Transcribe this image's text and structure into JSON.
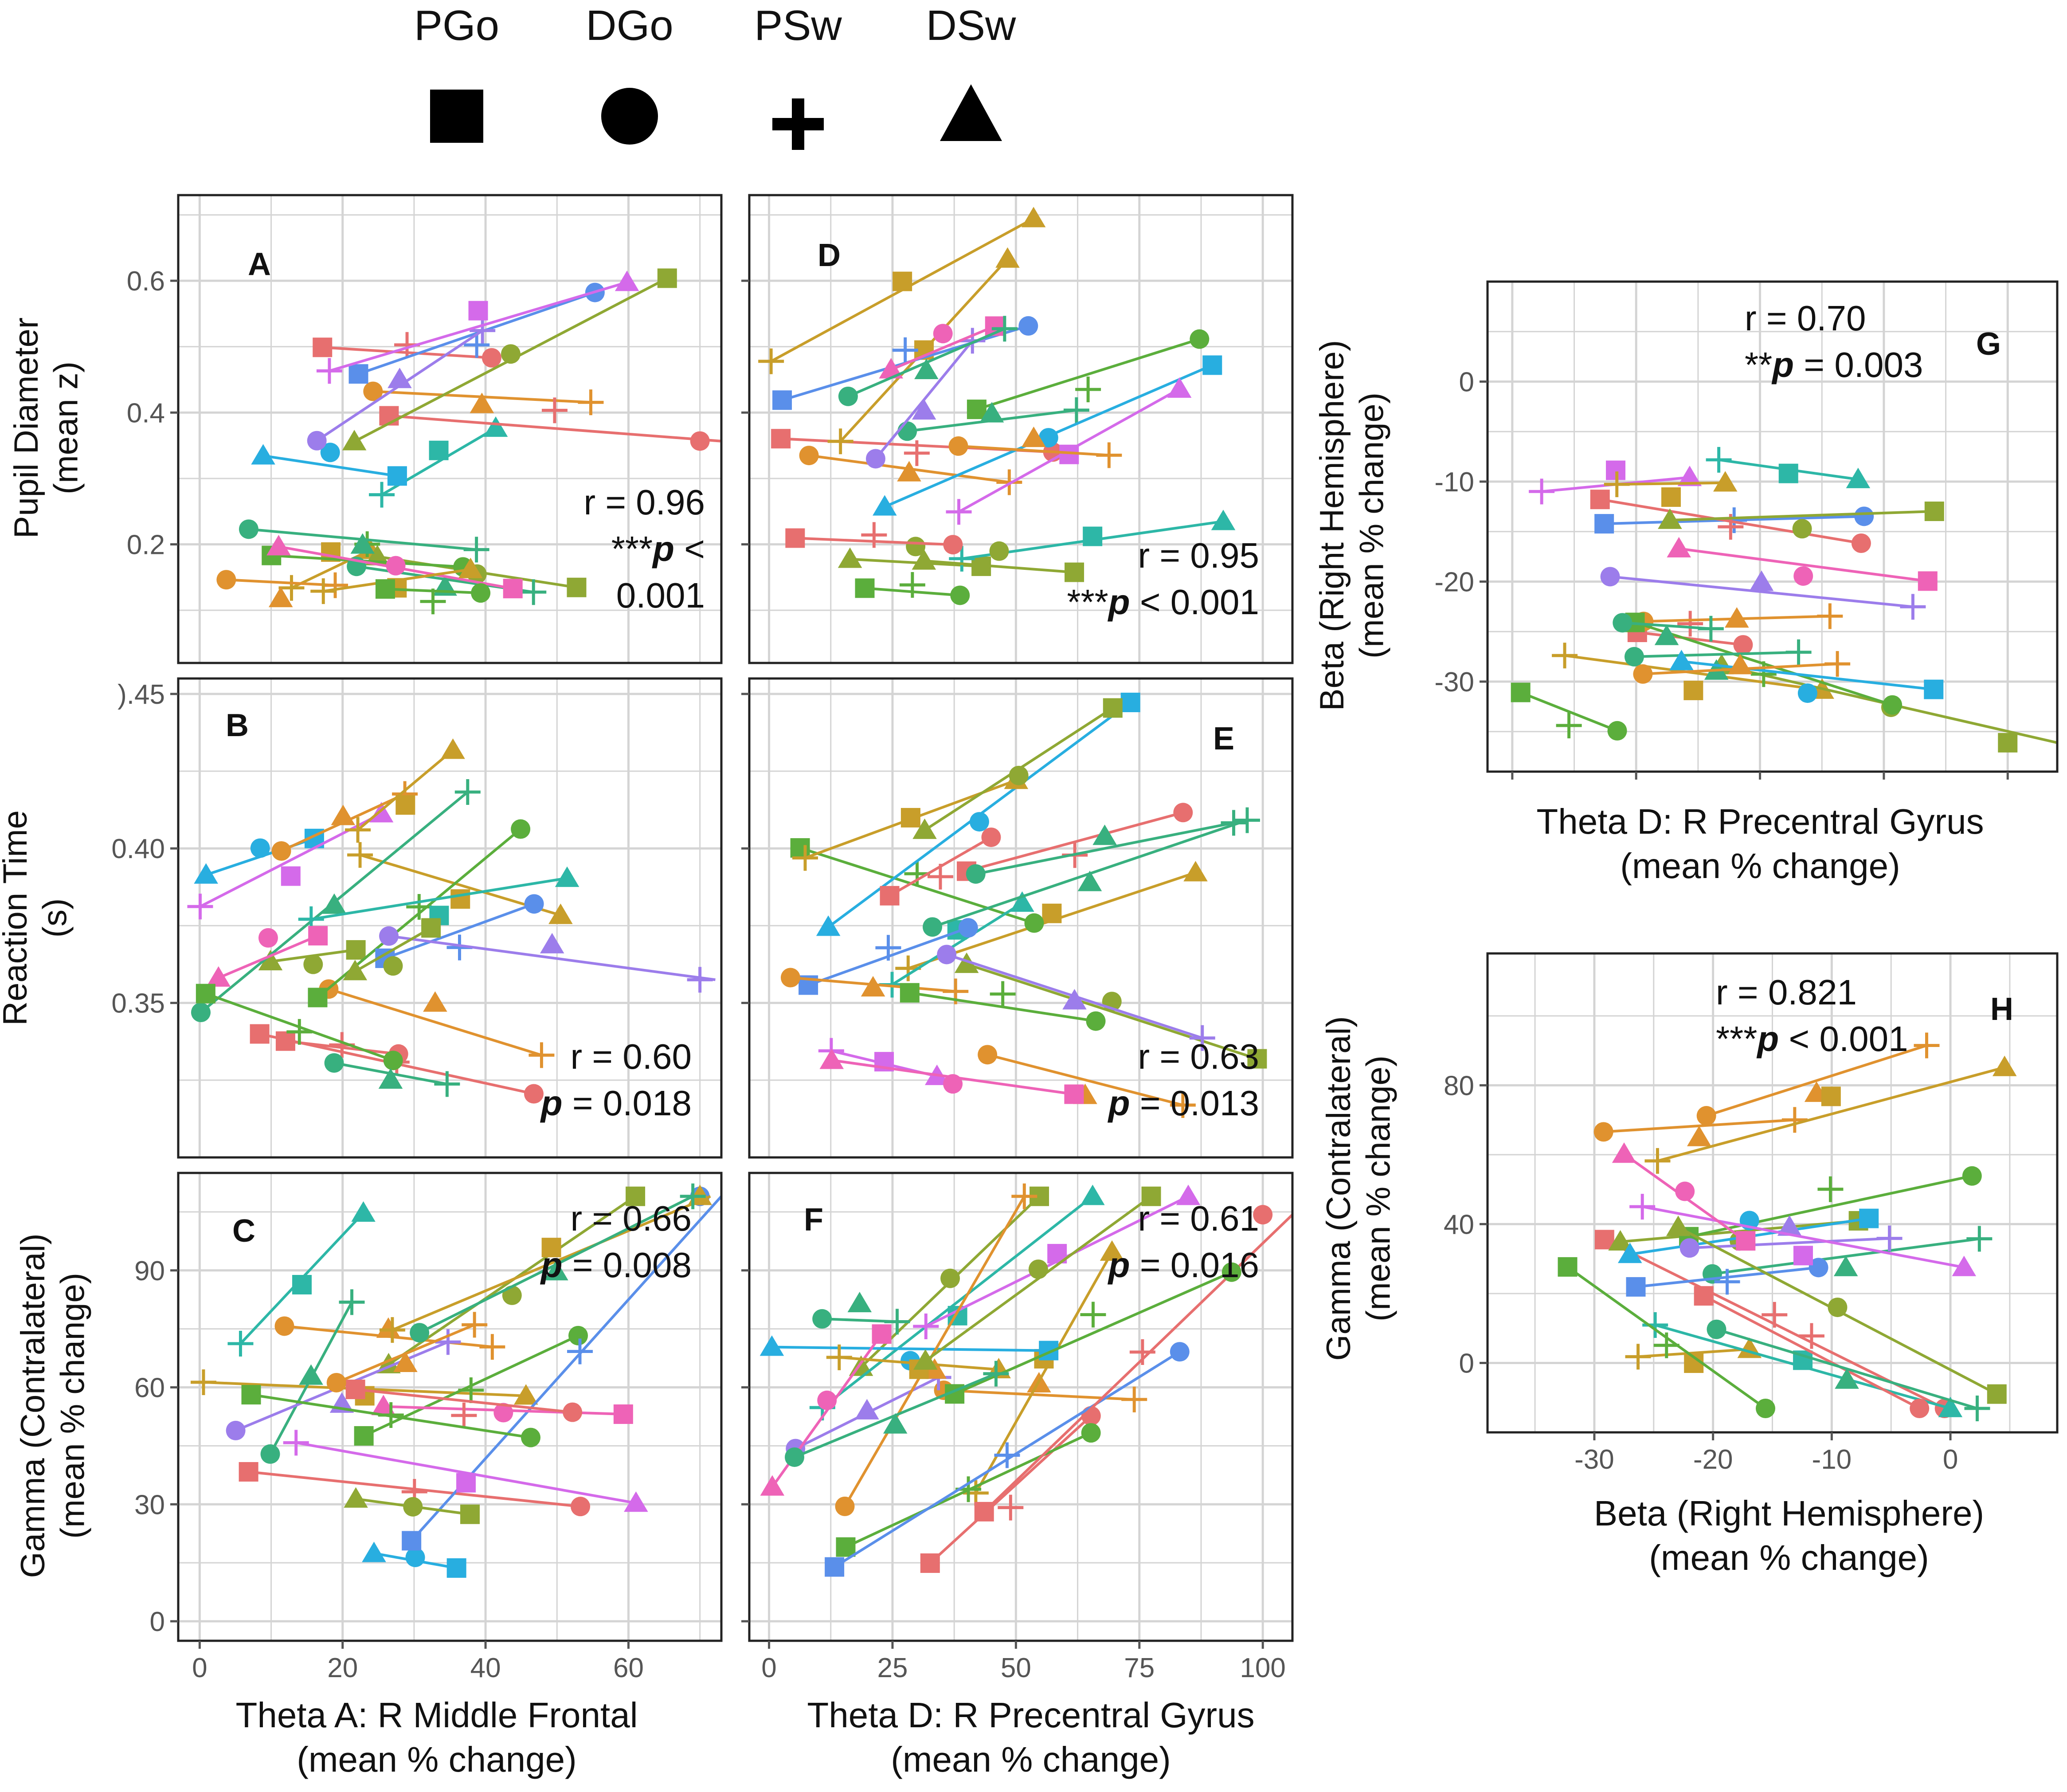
{
  "legend": {
    "items": [
      {
        "label": "PGo",
        "shape": "square"
      },
      {
        "label": "DGo",
        "shape": "circle"
      },
      {
        "label": "PSw",
        "shape": "plus"
      },
      {
        "label": "DSw",
        "shape": "triangle"
      }
    ]
  },
  "colors": {
    "frame": "#222222",
    "grid": "#d4d4d4",
    "tick": "#555555",
    "palette": [
      "#E76F6F",
      "#E0922F",
      "#C89E2A",
      "#8FA834",
      "#5BAE3C",
      "#38B07F",
      "#2DB7A7",
      "#28AEE0",
      "#5A8FEA",
      "#9C7DEB",
      "#D46AEA",
      "#EE63B7"
    ]
  },
  "xlabels": {
    "theta_a": [
      "Theta A: R Middle Frontal",
      "(mean % change)"
    ],
    "theta_d": [
      "Theta D: R Precentral Gyrus",
      "(mean % change)"
    ],
    "theta_d_g": [
      "Theta D: R Precentral Gyrus",
      "(mean % change)"
    ],
    "beta_h": [
      "Beta (Right Hemisphere)",
      "(mean % change)"
    ]
  },
  "ylabels": {
    "pupil": [
      "Pupil Diameter",
      "(mean z)"
    ],
    "rt": [
      "Reaction Time",
      "(s)"
    ],
    "gamma": [
      "Gamma (Contralateral)",
      "(mean % change)"
    ],
    "beta_g": [
      "Beta (Right Hemisphere)",
      "(mean % change)"
    ],
    "gamma_h": [
      "Gamma (Contralateral)",
      "(mean % change)"
    ]
  },
  "chart_data": [
    {
      "panel": "A",
      "type": "scatter",
      "xlabel": "Theta A: R Middle Frontal (mean % change)",
      "ylabel": "Pupil Diameter (mean z)",
      "xlim": [
        -3,
        73
      ],
      "ylim": [
        0.02,
        0.73
      ],
      "xticks": [
        0,
        20,
        40,
        60
      ],
      "yticks": [
        0.2,
        0.4,
        0.6
      ],
      "ytick_labels": [
        "0.2",
        "0.4",
        "0.6"
      ],
      "stats": [
        "r = 0.96",
        "***p <",
        "0.001"
      ],
      "seed": 1,
      "slopes": [
        0.004,
        -0.001
      ],
      "xmin": 0,
      "xmax": 70
    },
    {
      "panel": "B",
      "type": "scatter",
      "xlabel": "Theta A: R Middle Frontal (mean % change)",
      "ylabel": "Reaction Time (s)",
      "xlim": [
        -3,
        73
      ],
      "ylim": [
        0.3,
        0.455
      ],
      "xticks": [
        0,
        20,
        40,
        60
      ],
      "yticks": [
        0.35,
        0.4,
        0.45
      ],
      "ytick_labels": [
        "0.35",
        "0.40",
        ").45"
      ],
      "stats": [
        "r = 0.60",
        "p = 0.018"
      ],
      "seed": 2,
      "slopes": [
        0.001,
        -0.0005
      ],
      "xmin": 0,
      "xmax": 70
    },
    {
      "panel": "C",
      "type": "scatter",
      "xlabel": "Theta A: R Middle Frontal (mean % change)",
      "ylabel": "Gamma (Contralateral) (mean % change)",
      "xlim": [
        -3,
        73
      ],
      "ylim": [
        -5,
        115
      ],
      "xticks": [
        0,
        20,
        40,
        60
      ],
      "yticks": [
        0,
        30,
        60,
        90
      ],
      "ytick_labels": [
        "0",
        "30",
        "60",
        "90"
      ],
      "xtick_labels": [
        "0",
        "20",
        "40",
        "60"
      ],
      "stats": [
        "r = 0.66",
        "p = 0.008"
      ],
      "seed": 3,
      "slopes": [
        1.5,
        -0.2
      ],
      "xmin": 0,
      "xmax": 70
    },
    {
      "panel": "D",
      "type": "scatter",
      "xlabel": "Theta D: R Precentral Gyrus (mean % change)",
      "ylabel": "Pupil Diameter (mean z)",
      "xlim": [
        -4,
        106
      ],
      "ylim": [
        0.02,
        0.73
      ],
      "xticks": [
        0,
        25,
        50,
        75,
        100
      ],
      "yticks": [
        0.2,
        0.4,
        0.6
      ],
      "stats": [
        "r = 0.95",
        "***p < 0.001"
      ],
      "seed": 4,
      "slopes": [
        0.005,
        -0.0005
      ],
      "xmin": 0,
      "xmax": 100
    },
    {
      "panel": "E",
      "type": "scatter",
      "xlabel": "Theta D: R Precentral Gyrus (mean % change)",
      "ylabel": "Reaction Time (s)",
      "xlim": [
        -4,
        106
      ],
      "ylim": [
        0.3,
        0.455
      ],
      "xticks": [
        0,
        25,
        50,
        75,
        100
      ],
      "yticks": [
        0.35,
        0.4,
        0.45
      ],
      "stats": [
        "r = 0.63",
        "p = 0.013"
      ],
      "seed": 5,
      "slopes": [
        0.001,
        -0.0003
      ],
      "xmin": 0,
      "xmax": 100
    },
    {
      "panel": "F",
      "type": "scatter",
      "xlabel": "Theta D: R Precentral Gyrus (mean % change)",
      "ylabel": "Gamma (Contralateral) (mean % change)",
      "xlim": [
        -4,
        106
      ],
      "ylim": [
        -5,
        115
      ],
      "xticks": [
        0,
        25,
        50,
        75,
        100
      ],
      "yticks": [
        0,
        30,
        60,
        90
      ],
      "xtick_labels": [
        "0",
        "25",
        "50",
        "75",
        "100"
      ],
      "stats": [
        "r = 0.61",
        "p = 0.016"
      ],
      "seed": 6,
      "slopes": [
        1.2,
        -0.1
      ],
      "xmin": 0,
      "xmax": 100
    },
    {
      "panel": "G",
      "type": "scatter",
      "xlabel": "Theta D: R Precentral Gyrus (mean % change)",
      "ylabel": "Beta (Right Hemisphere) (mean % change)",
      "xlim": [
        -5,
        110
      ],
      "ylim": [
        -39,
        10
      ],
      "xticks": [
        0,
        25,
        50,
        75,
        100
      ],
      "yticks": [
        -30,
        -20,
        -10,
        0
      ],
      "ytick_labels": [
        "-30",
        "-20",
        "-10",
        "0"
      ],
      "stats": [
        "r = 0.70",
        "**p = 0.003"
      ],
      "seed": 7,
      "slopes": [
        -0.1,
        0.02
      ],
      "xmin": 0,
      "xmax": 100
    },
    {
      "panel": "H",
      "type": "scatter",
      "xlabel": "Beta (Right Hemisphere) (mean % change)",
      "ylabel": "Gamma (Contralateral) (mean % change)",
      "xlim": [
        -39,
        9
      ],
      "ylim": [
        -20,
        118
      ],
      "xticks": [
        -30,
        -20,
        -10,
        0
      ],
      "xtick_labels": [
        "-30",
        "-20",
        "-10",
        "0"
      ],
      "yticks": [
        0,
        40,
        80
      ],
      "ytick_labels": [
        "0",
        "40",
        "80"
      ],
      "stats": [
        "r = 0.821",
        "***p < 0.001"
      ],
      "seed": 8,
      "slopes": [
        -2.5,
        0.5
      ],
      "xmin": -37,
      "xmax": 7
    }
  ]
}
